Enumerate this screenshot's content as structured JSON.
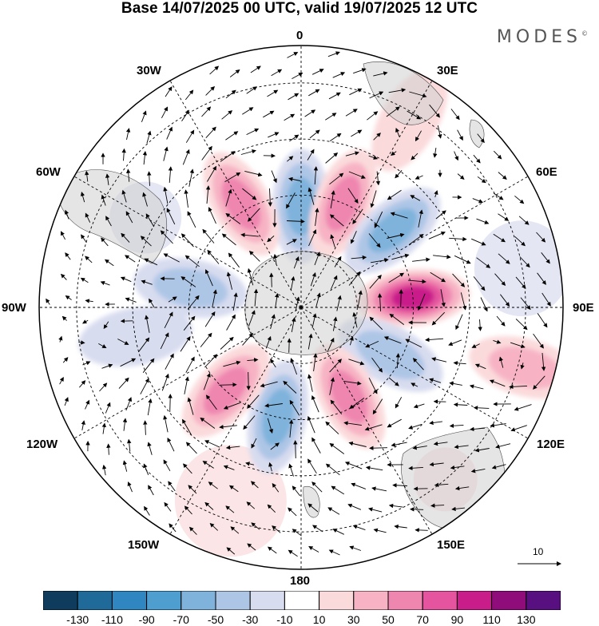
{
  "title": "Base 14/07/2025 00 UTC, valid 19/07/2025 12 UTC",
  "brand": "MODES",
  "brand_mark": "©",
  "longitude_labels": {
    "lon_0": "0",
    "lon_30e": "30E",
    "lon_60e": "60E",
    "lon_90e": "90E",
    "lon_120e": "120E",
    "lon_150e": "150E",
    "lon_180": "180",
    "lon_150w": "150W",
    "lon_120w": "120W",
    "lon_90w": "90W",
    "lon_60w": "60W",
    "lon_30w": "30W"
  },
  "reference_vector_label": "10",
  "colorbar": {
    "colors": [
      "#0f3b5c",
      "#1f6a99",
      "#2f86c0",
      "#4e9fd0",
      "#7fb3dc",
      "#aec6e6",
      "#d8dcef",
      "#ffffff",
      "#fbdadc",
      "#f7b3c4",
      "#ef86b0",
      "#e5549e",
      "#c91e8a",
      "#8e0d7a",
      "#580f80"
    ],
    "tick_labels": [
      "-130",
      "-110",
      "-90",
      "-70",
      "-50",
      "-30",
      "-10",
      "10",
      "30",
      "50",
      "70",
      "90",
      "110",
      "130"
    ]
  },
  "anomaly_centers": [
    {
      "lon": 0,
      "colat_deg": 27,
      "value": -60
    },
    {
      "lon": 22,
      "colat_deg": 30,
      "value": 75
    },
    {
      "lon": 50,
      "colat_deg": 32,
      "value": -75
    },
    {
      "lon": 85,
      "colat_deg": 30,
      "value": 105
    },
    {
      "lon": 118,
      "colat_deg": 27,
      "value": -45
    },
    {
      "lon": 152,
      "colat_deg": 27,
      "value": 75
    },
    {
      "lon": 192,
      "colat_deg": 30,
      "value": -60
    },
    {
      "lon": 222,
      "colat_deg": 30,
      "value": 70
    },
    {
      "lon": 260,
      "colat_deg": 45,
      "value": -30
    },
    {
      "lon": 280,
      "colat_deg": 30,
      "value": -40
    },
    {
      "lon": 330,
      "colat_deg": 32,
      "value": 65
    },
    {
      "lon": 105,
      "colat_deg": 62,
      "value": 40
    },
    {
      "lon": 30,
      "colat_deg": 58,
      "value": 25
    }
  ]
}
